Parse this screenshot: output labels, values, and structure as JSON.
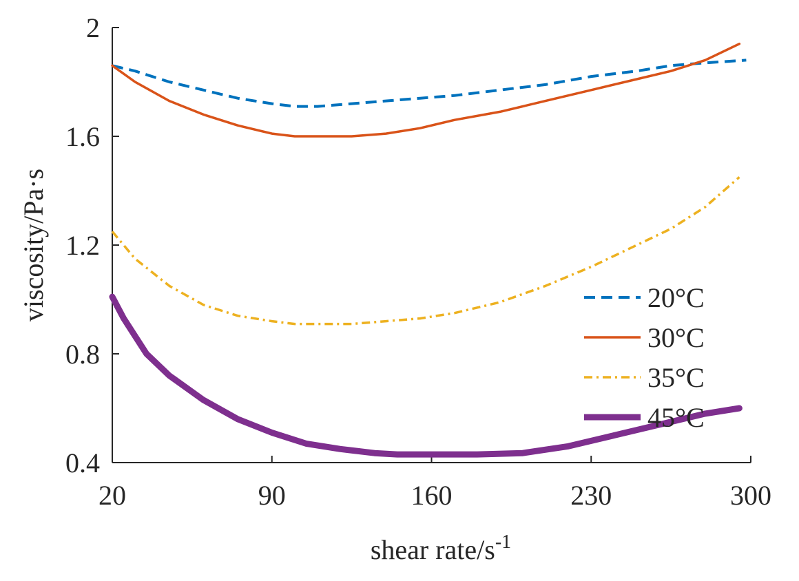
{
  "chart_data": {
    "type": "line",
    "xlabel": "shear rate/s",
    "xlabel_superscript": "-1",
    "ylabel": "viscosity/Pa·s",
    "xlim": [
      20,
      300
    ],
    "ylim": [
      0.4,
      2.0
    ],
    "xticks": [
      20,
      90,
      160,
      230,
      300
    ],
    "xtick_labels": [
      "20",
      "90",
      "160",
      "230",
      "300"
    ],
    "yticks": [
      0.4,
      0.8,
      1.2,
      1.6,
      2.0
    ],
    "ytick_labels": [
      "0.4",
      "0.8",
      "1.2",
      "1.6",
      "2"
    ],
    "grid": false,
    "legend_position": "right-center",
    "series": [
      {
        "name": "20°C",
        "color": "#0072BD",
        "style": "dashed",
        "x": [
          20,
          30,
          45,
          60,
          75,
          90,
          100,
          110,
          125,
          140,
          155,
          170,
          190,
          210,
          230,
          250,
          265,
          280,
          298
        ],
        "y": [
          1.86,
          1.84,
          1.8,
          1.77,
          1.74,
          1.72,
          1.71,
          1.71,
          1.72,
          1.73,
          1.74,
          1.75,
          1.77,
          1.79,
          1.82,
          1.84,
          1.86,
          1.87,
          1.88
        ]
      },
      {
        "name": "30°C",
        "color": "#D95319",
        "style": "solid",
        "x": [
          20,
          30,
          45,
          60,
          75,
          90,
          100,
          110,
          125,
          140,
          155,
          170,
          190,
          210,
          230,
          250,
          265,
          280,
          295
        ],
        "y": [
          1.86,
          1.8,
          1.73,
          1.68,
          1.64,
          1.61,
          1.6,
          1.6,
          1.6,
          1.61,
          1.63,
          1.66,
          1.69,
          1.73,
          1.77,
          1.81,
          1.84,
          1.88,
          1.94
        ]
      },
      {
        "name": "35°C",
        "color": "#EDB120",
        "style": "dashdot",
        "x": [
          20,
          30,
          45,
          60,
          75,
          90,
          100,
          110,
          125,
          140,
          155,
          170,
          190,
          210,
          230,
          250,
          265,
          280,
          295
        ],
        "y": [
          1.25,
          1.15,
          1.05,
          0.98,
          0.94,
          0.92,
          0.91,
          0.91,
          0.91,
          0.92,
          0.93,
          0.95,
          0.99,
          1.05,
          1.12,
          1.2,
          1.26,
          1.34,
          1.45
        ]
      },
      {
        "name": "45°C",
        "color": "#7E2F8E",
        "style": "thick",
        "x": [
          20,
          25,
          35,
          45,
          60,
          75,
          90,
          105,
          120,
          135,
          145,
          160,
          180,
          200,
          220,
          240,
          260,
          280,
          295
        ],
        "y": [
          1.01,
          0.93,
          0.8,
          0.72,
          0.63,
          0.56,
          0.51,
          0.47,
          0.45,
          0.435,
          0.43,
          0.43,
          0.43,
          0.435,
          0.46,
          0.5,
          0.54,
          0.58,
          0.6
        ]
      }
    ]
  }
}
